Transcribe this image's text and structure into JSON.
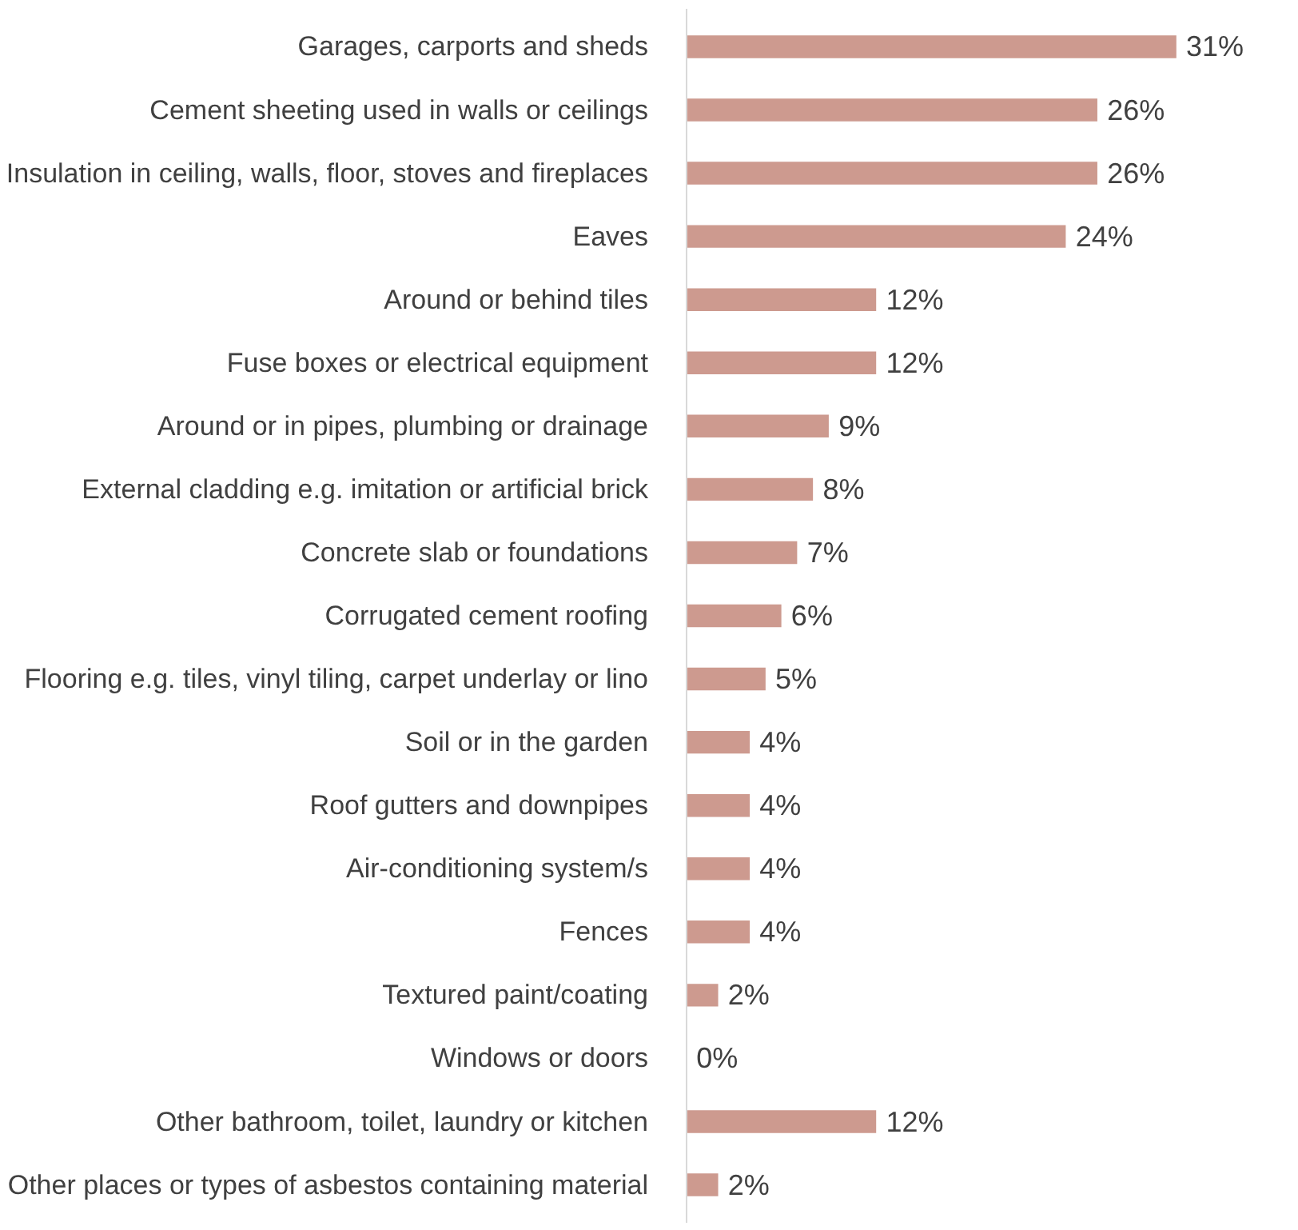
{
  "chart_data": {
    "type": "bar",
    "orientation": "horizontal",
    "color": "#cd9a8f",
    "grid": false,
    "categories": [
      "Garages, carports and sheds",
      "Cement sheeting used in walls or ceilings",
      "Insulation in ceiling, walls, floor, stoves and fireplaces",
      "Eaves",
      "Around or behind tiles",
      "Fuse boxes or electrical equipment",
      "Around or in pipes, plumbing or drainage",
      "External cladding e.g. imitation or artificial brick",
      "Concrete slab or foundations",
      "Corrugated cement roofing",
      "Flooring e.g. tiles, vinyl tiling, carpet underlay or lino",
      "Soil or in the garden",
      "Roof gutters and downpipes",
      "Air-conditioning system/s",
      "Fences",
      "Textured paint/coating",
      "Windows or doors",
      "Other bathroom, toilet, laundry or kitchen",
      "Other places or types of asbestos containing material"
    ],
    "values": [
      31,
      26,
      26,
      24,
      12,
      12,
      9,
      8,
      7,
      6,
      5,
      4,
      4,
      4,
      4,
      2,
      0,
      12,
      2
    ],
    "value_labels": [
      "31%",
      "26%",
      "26%",
      "24%",
      "12%",
      "12%",
      "9%",
      "8%",
      "7%",
      "6%",
      "5%",
      "4%",
      "4%",
      "4%",
      "4%",
      "2%",
      "0%",
      "12%",
      "2%"
    ]
  }
}
